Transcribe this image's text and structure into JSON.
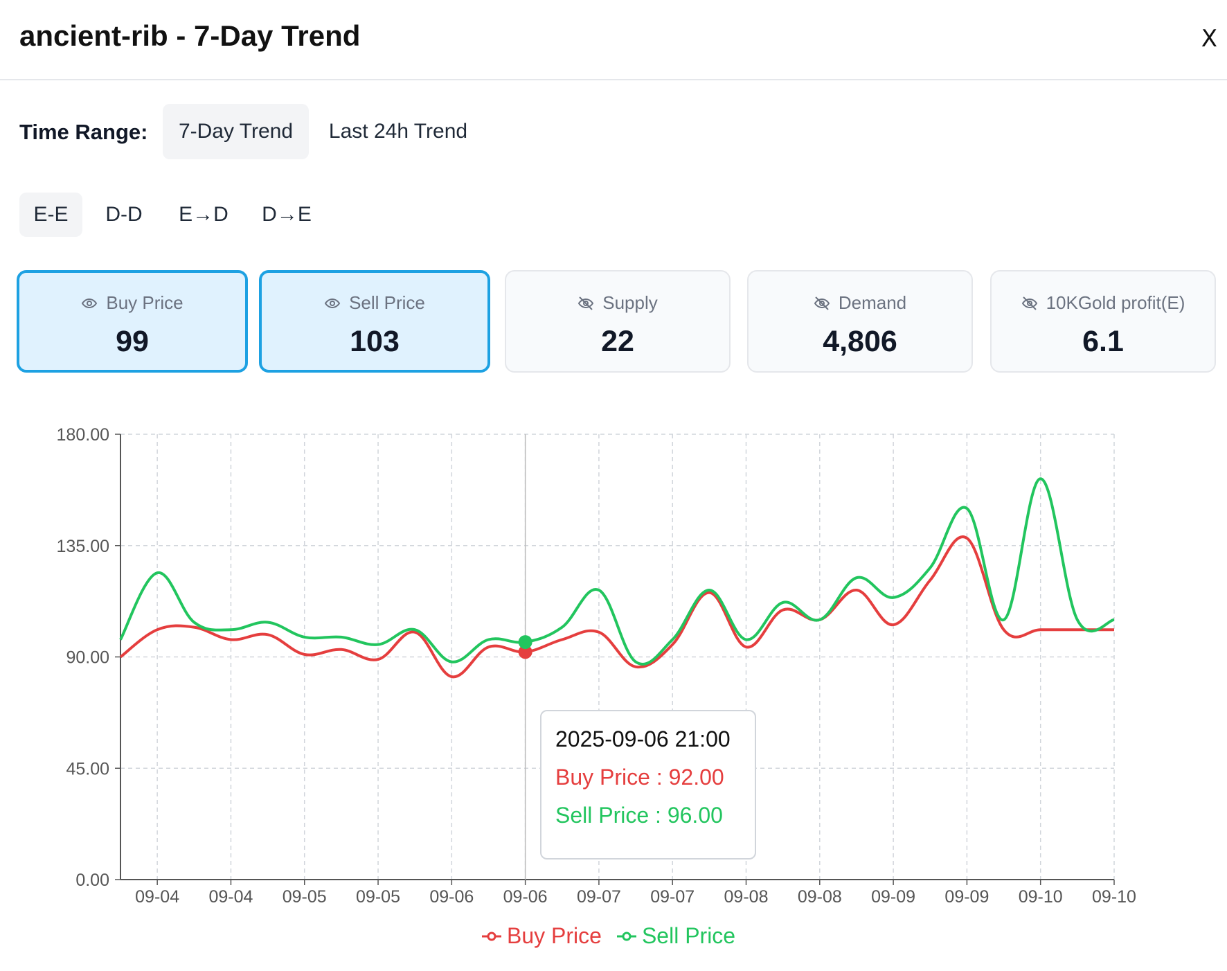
{
  "header": {
    "title": "ancient-rib - 7-Day Trend",
    "close_label": "X"
  },
  "time_range": {
    "label": "Time Range:",
    "options": [
      "7-Day Trend",
      "Last 24h Trend"
    ],
    "active": 0
  },
  "modes": {
    "options": [
      "E-E",
      "D-D",
      "E→D",
      "D→E"
    ],
    "active": 0
  },
  "cards": [
    {
      "label": "Buy Price",
      "value": "99",
      "visible": true
    },
    {
      "label": "Sell Price",
      "value": "103",
      "visible": true
    },
    {
      "label": "Supply",
      "value": "22",
      "visible": false
    },
    {
      "label": "Demand",
      "value": "4,806",
      "visible": false
    },
    {
      "label": "10KGold profit(E)",
      "value": "6.1",
      "visible": false
    }
  ],
  "tooltip": {
    "time": "2025-09-06 21:00",
    "buy": "Buy Price : 92.00",
    "sell": "Sell Price : 96.00"
  },
  "colors": {
    "buy": "#e53e3e",
    "sell": "#22c55e",
    "accent": "#1da1e2"
  },
  "chart_data": {
    "type": "line",
    "ylim": [
      0,
      180
    ],
    "yticks": [
      "180.00",
      "135.00",
      "90.00",
      "45.00",
      "0.00"
    ],
    "x_tick_labels": [
      "09-04",
      "09-04",
      "09-05",
      "09-05",
      "09-06",
      "09-06",
      "09-07",
      "09-07",
      "09-08",
      "09-08",
      "09-09",
      "09-09",
      "09-10",
      "09-10"
    ],
    "series": [
      {
        "name": "Buy Price",
        "color": "#e53e3e",
        "values": [
          90,
          101,
          102,
          97,
          99,
          91,
          93,
          89,
          100,
          82,
          94,
          92,
          97,
          100,
          86,
          95,
          116,
          94,
          109,
          105,
          117,
          103,
          121,
          138,
          101,
          101,
          101,
          101
        ]
      },
      {
        "name": "Sell Price",
        "color": "#22c55e",
        "values": [
          97,
          124,
          104,
          101,
          104,
          98,
          98,
          95,
          101,
          88,
          97,
          96,
          102,
          117,
          88,
          97,
          117,
          97,
          112,
          105,
          122,
          114,
          126,
          150,
          105,
          162,
          105,
          105
        ]
      }
    ],
    "highlight_index": 11,
    "legend": "bottom-center"
  }
}
